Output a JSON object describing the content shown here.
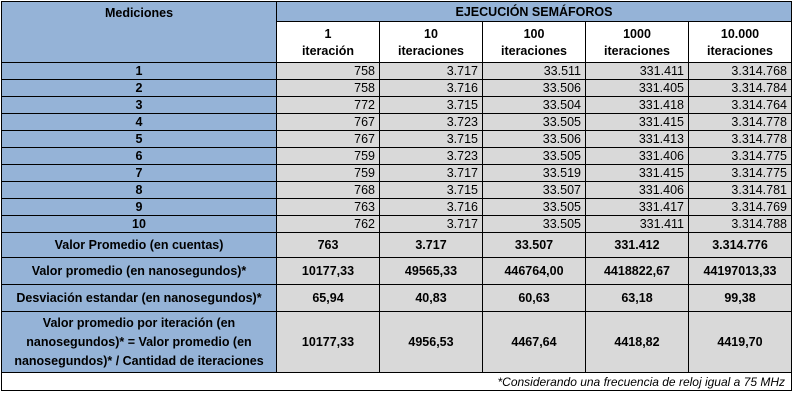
{
  "header": {
    "mediciones": "Mediciones",
    "ejecucion": "EJECUCIÓN SEMÁFOROS",
    "columns": [
      {
        "n": "1",
        "unit": "iteración"
      },
      {
        "n": "10",
        "unit": "iteraciones"
      },
      {
        "n": "100",
        "unit": "iteraciones"
      },
      {
        "n": "1000",
        "unit": "iteraciones"
      },
      {
        "n": "10.000",
        "unit": "iteraciones"
      }
    ]
  },
  "rows": [
    {
      "label": "1",
      "values": [
        "758",
        "3.717",
        "33.511",
        "331.411",
        "3.314.768"
      ]
    },
    {
      "label": "2",
      "values": [
        "758",
        "3.716",
        "33.506",
        "331.405",
        "3.314.784"
      ]
    },
    {
      "label": "3",
      "values": [
        "772",
        "3.715",
        "33.504",
        "331.418",
        "3.314.764"
      ]
    },
    {
      "label": "4",
      "values": [
        "767",
        "3.723",
        "33.505",
        "331.415",
        "3.314.778"
      ]
    },
    {
      "label": "5",
      "values": [
        "767",
        "3.715",
        "33.506",
        "331.413",
        "3.314.778"
      ]
    },
    {
      "label": "6",
      "values": [
        "759",
        "3.723",
        "33.505",
        "331.406",
        "3.314.775"
      ]
    },
    {
      "label": "7",
      "values": [
        "759",
        "3.717",
        "33.519",
        "331.415",
        "3.314.775"
      ]
    },
    {
      "label": "8",
      "values": [
        "768",
        "3.715",
        "33.507",
        "331.406",
        "3.314.781"
      ]
    },
    {
      "label": "9",
      "values": [
        "763",
        "3.716",
        "33.505",
        "331.417",
        "3.314.769"
      ]
    },
    {
      "label": "10",
      "values": [
        "762",
        "3.717",
        "33.505",
        "331.411",
        "3.314.788"
      ]
    }
  ],
  "summary": {
    "promedio_cuentas": {
      "label": "Valor Promedio (en cuentas)",
      "values": [
        "763",
        "3.717",
        "33.507",
        "331.412",
        "3.314.776"
      ]
    },
    "promedio_ns": {
      "label": "Valor promedio (en nanosegundos)*",
      "values": [
        "10177,33",
        "49565,33",
        "446764,00",
        "4418822,67",
        "44197013,33"
      ]
    },
    "desviacion": {
      "label": "Desviación estandar (en nanosegundos)*",
      "values": [
        "65,94",
        "40,83",
        "60,63",
        "63,18",
        "99,38"
      ]
    },
    "por_iteracion": {
      "label_lines": [
        "Valor promedio por iteración (en",
        "nanosegundos)* = Valor promedio (en",
        "nanosegundos)* / Cantidad de iteraciones"
      ],
      "values": [
        "10177,33",
        "4956,53",
        "4467,64",
        "4418,82",
        "4419,70"
      ]
    }
  },
  "footnote": "*Considerando una frecuencia de reloj igual a 75 MHz",
  "colors": {
    "header_blue": "#95b3d7",
    "cell_gray": "#d9d9d9"
  }
}
